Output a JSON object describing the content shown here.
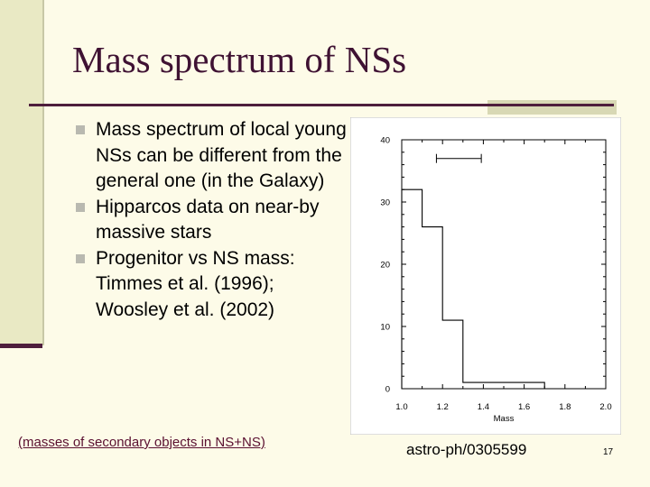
{
  "slide": {
    "title": "Mass spectrum of NSs",
    "bullets": [
      "Mass spectrum of local young NSs can be different from the general one (in the Galaxy)",
      "Hipparcos data on near-by massive stars",
      "Progenitor vs NS mass: Timmes et al. (1996); Woosley et al. (2002)"
    ],
    "caption": "(masses of secondary objects in NS+NS)",
    "reference": "astro-ph/0305599",
    "page_number": "17"
  },
  "colors": {
    "background": "#fdfbe8",
    "title": "#3f1233",
    "accent": "#4e1e3c",
    "caption": "#5a1030"
  },
  "chart_data": {
    "type": "bar",
    "style": "step-histogram",
    "title": "",
    "xlabel": "Mass",
    "ylabel": "",
    "xlim": [
      1.0,
      2.0
    ],
    "ylim": [
      0,
      40
    ],
    "bin_edges": [
      1.0,
      1.1,
      1.2,
      1.3,
      1.4,
      1.5,
      1.6,
      1.7,
      1.8,
      1.9,
      2.0
    ],
    "values": [
      32,
      26,
      11,
      1,
      1,
      1,
      1,
      0,
      0,
      0
    ],
    "x_ticks": [
      "1.0",
      "1.2",
      "1.4",
      "1.6",
      "1.8",
      "2.0"
    ],
    "y_ticks": [
      "0",
      "10",
      "20",
      "30",
      "40"
    ],
    "annotation": {
      "type": "error-bar",
      "x_range": [
        1.17,
        1.39
      ],
      "y": 37
    }
  }
}
